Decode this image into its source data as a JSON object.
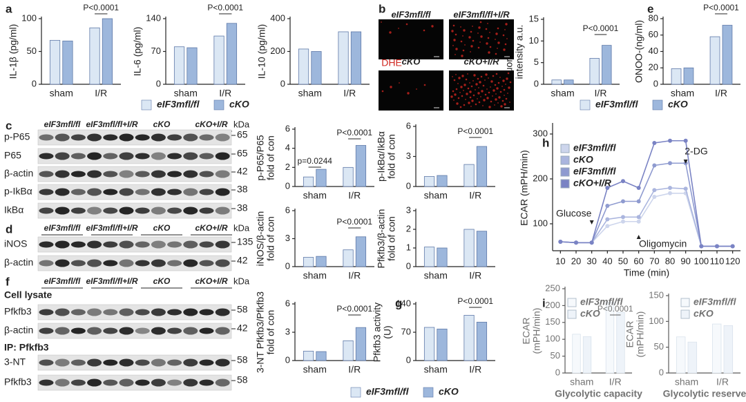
{
  "panel_labels": [
    "a",
    "b",
    "c",
    "d",
    "e",
    "f",
    "g",
    "h",
    "i"
  ],
  "chart_data": [
    {
      "type": "bar",
      "ylabel": [
        "IL-1β (pg/ml)"
      ],
      "categories": [
        "sham",
        "I/R"
      ],
      "ylim": [
        0,
        100
      ],
      "yticks": [
        0,
        50,
        100
      ],
      "series": [
        {
          "name": "eIF3mfl/fl",
          "color": "#dbe7f4",
          "values": [
            67,
            86
          ]
        },
        {
          "name": "cKO",
          "color": "#9db7dc",
          "values": [
            66,
            100
          ]
        }
      ],
      "annotations": [
        "P<0.0001"
      ]
    },
    {
      "type": "bar",
      "ylabel": [
        "IL-6 (pg/ml)"
      ],
      "categories": [
        "sham",
        "I/R"
      ],
      "ylim": [
        0,
        140
      ],
      "yticks": [
        0,
        70,
        140
      ],
      "series": [
        {
          "name": "eIF3mfl/fl",
          "color": "#dbe7f4",
          "values": [
            80,
            103
          ]
        },
        {
          "name": "cKO",
          "color": "#9db7dc",
          "values": [
            78,
            130
          ]
        }
      ],
      "annotations": [
        "P<0.0001"
      ]
    },
    {
      "type": "bar",
      "ylabel": [
        "IL-10 (pg/ml)"
      ],
      "categories": [
        "sham",
        "I/R"
      ],
      "ylim": [
        0,
        400
      ],
      "yticks": [
        0,
        200,
        400
      ],
      "series": [
        {
          "name": "eIF3mfl/fl",
          "color": "#dbe7f4",
          "values": [
            215,
            320
          ]
        },
        {
          "name": "cKO",
          "color": "#9db7dc",
          "values": [
            200,
            320
          ]
        }
      ],
      "annotations": []
    },
    {
      "type": "bar",
      "ylabel": [
        "Fluorescence",
        "intensity a.u."
      ],
      "categories": [
        "sham",
        "I/R"
      ],
      "ylim": [
        0,
        15
      ],
      "yticks": [
        0,
        5,
        10,
        15
      ],
      "series": [
        {
          "name": "eIF3mfl/fl",
          "color": "#dbe7f4",
          "values": [
            1,
            6
          ]
        },
        {
          "name": "cKO",
          "color": "#9db7dc",
          "values": [
            1,
            9
          ]
        }
      ],
      "annotations": [
        "P<0.0001"
      ]
    },
    {
      "type": "bar",
      "ylabel": [
        "ONOO-(ng/ml)"
      ],
      "categories": [
        "sham",
        "I/R"
      ],
      "ylim": [
        0,
        80
      ],
      "yticks": [
        0,
        20,
        40,
        60,
        80
      ],
      "series": [
        {
          "name": "eIF3mfl/fl",
          "color": "#dbe7f4",
          "values": [
            19,
            58
          ]
        },
        {
          "name": "cKO",
          "color": "#9db7dc",
          "values": [
            20,
            72
          ]
        }
      ],
      "annotations": [
        "P<0.0001"
      ]
    },
    {
      "type": "bar",
      "ylabel": [
        "p-P65/P65",
        "fold of con"
      ],
      "categories": [
        "sham",
        "I/R"
      ],
      "ylim": [
        0,
        6
      ],
      "yticks": [
        0,
        2,
        4,
        6
      ],
      "series": [
        {
          "name": "eIF3mfl/fl",
          "color": "#dbe7f4",
          "values": [
            1.0,
            2.0
          ]
        },
        {
          "name": "cKO",
          "color": "#9db7dc",
          "values": [
            1.8,
            4.3
          ]
        }
      ],
      "annotations": [
        "p=0.0244",
        "P<0.0001"
      ]
    },
    {
      "type": "bar",
      "ylabel": [
        "p-IkBα/IkBα",
        "fold of con"
      ],
      "categories": [
        "sham",
        "I/R"
      ],
      "ylim": [
        0,
        6
      ],
      "yticks": [
        0,
        3,
        6
      ],
      "series": [
        {
          "name": "eIF3mfl/fl",
          "color": "#dbe7f4",
          "values": [
            1.0,
            2.2
          ]
        },
        {
          "name": "cKO",
          "color": "#9db7dc",
          "values": [
            1.1,
            4.0
          ]
        }
      ],
      "annotations": [
        "P<0.0001"
      ]
    },
    {
      "type": "bar",
      "ylabel": [
        "iNOS/β-actin",
        "fold of con"
      ],
      "categories": [
        "sham",
        "I/R"
      ],
      "ylim": [
        0,
        6
      ],
      "yticks": [
        0,
        3,
        6
      ],
      "series": [
        {
          "name": "eIF3mfl/fl",
          "color": "#dbe7f4",
          "values": [
            1.0,
            1.8
          ]
        },
        {
          "name": "cKO",
          "color": "#9db7dc",
          "values": [
            1.1,
            3.2
          ]
        }
      ],
      "annotations": [
        "P<0.0001"
      ]
    },
    {
      "type": "bar",
      "ylabel": [
        "Pfkfb3/β-actin",
        "fold of con"
      ],
      "categories": [
        "sham",
        "I/R"
      ],
      "ylim": [
        0,
        3
      ],
      "yticks": [
        0,
        1,
        2,
        3
      ],
      "series": [
        {
          "name": "eIF3mfl/fl",
          "color": "#dbe7f4",
          "values": [
            1.05,
            2.0
          ]
        },
        {
          "name": "cKO",
          "color": "#9db7dc",
          "values": [
            1.0,
            1.9
          ]
        }
      ],
      "annotations": []
    },
    {
      "type": "bar",
      "ylabel": [
        "3-NT Pfkfb3/Pfkfb3",
        "fold of con"
      ],
      "categories": [
        "sham",
        "I/R"
      ],
      "ylim": [
        0,
        6
      ],
      "yticks": [
        0,
        3,
        6
      ],
      "series": [
        {
          "name": "eIF3mfl/fl",
          "color": "#dbe7f4",
          "values": [
            1.0,
            2.1
          ]
        },
        {
          "name": "cKO",
          "color": "#9db7dc",
          "values": [
            0.95,
            3.5
          ]
        }
      ],
      "annotations": [
        "P<0.0001"
      ]
    },
    {
      "type": "bar",
      "ylabel": [
        "Pfkfb3 activity",
        "(U)"
      ],
      "categories": [
        "sham",
        "I/R"
      ],
      "ylim": [
        0,
        140
      ],
      "yticks": [
        0,
        70,
        140
      ],
      "series": [
        {
          "name": "eIF3mfl/fl",
          "color": "#dbe7f4",
          "values": [
            82,
            112
          ]
        },
        {
          "name": "cKO",
          "color": "#9db7dc",
          "values": [
            78,
            95
          ]
        }
      ],
      "annotations": [
        "P<0.0001"
      ]
    },
    {
      "type": "line",
      "ylabel": [
        "ECAR (mPH/min)"
      ],
      "xlabel": "Time (min)",
      "x": [
        10,
        20,
        30,
        40,
        50,
        60,
        70,
        80,
        90,
        100,
        110,
        120
      ],
      "xlim": [
        5,
        125
      ],
      "xticks": [
        10,
        20,
        30,
        40,
        50,
        60,
        70,
        80,
        90,
        100,
        110,
        120
      ],
      "ylim": [
        40,
        320
      ],
      "yticks": [
        100,
        200,
        300
      ],
      "legend": "upper left",
      "series": [
        {
          "name": "eIF3mfl/fl",
          "color": "#cdd5ec",
          "values": [
            60,
            58,
            58,
            95,
            105,
            105,
            160,
            168,
            168,
            50,
            50,
            50
          ]
        },
        {
          "name": "cKO",
          "color": "#aab5de",
          "values": [
            60,
            58,
            58,
            110,
            115,
            115,
            175,
            180,
            178,
            50,
            50,
            50
          ]
        },
        {
          "name": "eIF3mfl/fl",
          "color": "#8f9bd0",
          "values": [
            60,
            58,
            58,
            140,
            150,
            150,
            230,
            235,
            235,
            50,
            50,
            50
          ]
        },
        {
          "name": "cKO+I/R",
          "color": "#7a83c4",
          "values": [
            60,
            58,
            58,
            180,
            195,
            180,
            280,
            285,
            285,
            50,
            50,
            50
          ]
        }
      ],
      "annotations": [
        "Glucose",
        "Oligomycin",
        "2-DG"
      ]
    },
    {
      "type": "bar",
      "ylabel": [
        "ECAR",
        "(mPH/min)"
      ],
      "xlabel": "Glycolytic capacity",
      "categories": [
        "sham",
        "I/R"
      ],
      "ylim": [
        0,
        250
      ],
      "yticks": [
        0,
        50,
        100,
        150,
        200,
        250
      ],
      "legend": "upper left",
      "series": [
        {
          "name": "eIF3mfl/fl",
          "color": "#f3f7fb",
          "values": [
            115,
            210
          ]
        },
        {
          "name": "cKO",
          "color": "#e9f0f7",
          "values": [
            108,
            180
          ]
        }
      ],
      "annotations": [
        "P<0.0001"
      ]
    },
    {
      "type": "bar",
      "ylabel": [
        "ECAR",
        "(mPH/min)"
      ],
      "xlabel": "Glycolytic reserve",
      "categories": [
        "sham",
        "I/R"
      ],
      "ylim": [
        0,
        150
      ],
      "yticks": [
        0,
        50,
        100,
        150
      ],
      "legend": "upper left",
      "series": [
        {
          "name": "eIF3mfl/fl",
          "color": "#f3f7fb",
          "values": [
            70,
            95
          ]
        },
        {
          "name": "cKO",
          "color": "#e9f0f7",
          "values": [
            60,
            92
          ]
        }
      ],
      "annotations": []
    }
  ],
  "blots": [
    {
      "header": [
        "eIF3mfl/fl",
        "eIF3mfl/fl+I/R",
        "cKO",
        "cKO+I/R"
      ],
      "unit": "kDa",
      "rows": [
        {
          "label": "p-P65",
          "kda": 65
        },
        {
          "label": "P65",
          "kda": 65
        },
        {
          "label": "β-actin",
          "kda": 42
        },
        {
          "label": "p-IkBα",
          "kda": 38
        },
        {
          "label": "IkBα",
          "kda": 38
        }
      ]
    },
    {
      "header": [
        "eIF3mfl/fl",
        "eIF3mfl/fl+I/R",
        "cKO",
        "cKO+I/R"
      ],
      "unit": "kDa",
      "rows": [
        {
          "label": "iNOS",
          "kda": 135
        },
        {
          "label": "β-actin",
          "kda": 42
        }
      ]
    },
    {
      "header": [
        "eIF3mfl/fl",
        "eIF3mfl/fl+I/R",
        "cKO",
        "cKO+I/R"
      ],
      "unit": "kDa",
      "groups": [
        "Cell lysate",
        "IP: Pfkfb3"
      ],
      "rows": [
        {
          "label": "Pfkfb3",
          "kda": 58
        },
        {
          "label": "β-actin",
          "kda": 42
        },
        {
          "label": "3-NT",
          "kda": 58
        },
        {
          "label": "Pfkfb3",
          "kda": 58
        }
      ]
    }
  ],
  "dhe": {
    "stain": "DHE",
    "labels": [
      "eIF3mfl/fl",
      "eIF3mfl/fl+I/R",
      "cKO",
      "cKO+I/R"
    ]
  }
}
